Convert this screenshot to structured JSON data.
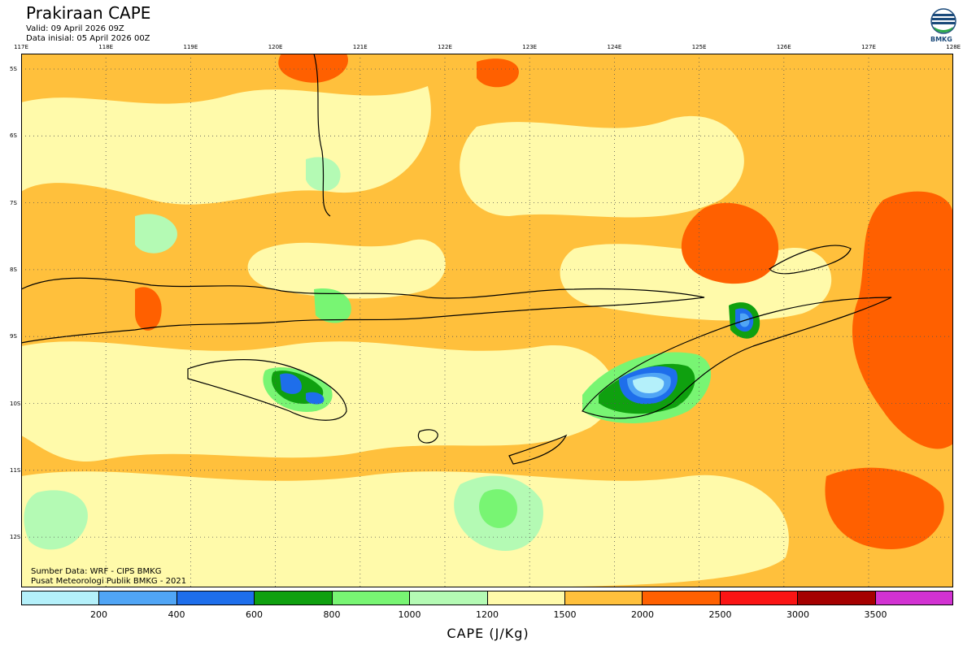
{
  "header": {
    "title": "Prakiraan CAPE",
    "valid": "Valid: 09 April 2026 09Z",
    "init": "Data inisial: 05 April 2026 00Z"
  },
  "logo": {
    "text": "BMKG"
  },
  "axes": {
    "lon_labels": [
      "117E",
      "118E",
      "119E",
      "120E",
      "121E",
      "122E",
      "123E",
      "124E",
      "125E",
      "126E",
      "127E",
      "128E"
    ],
    "lat_labels": [
      "5S",
      "6S",
      "7S",
      "8S",
      "9S",
      "10S",
      "11S",
      "12S"
    ]
  },
  "credits": {
    "line1": "Sumber Data: WRF - CIPS BMKG",
    "line2": "Pusat Meteorologi Publik BMKG - 2021"
  },
  "colorbar": {
    "label": "CAPE (J/Kg)",
    "ticks": [
      "200",
      "400",
      "600",
      "800",
      "1000",
      "1200",
      "1500",
      "2000",
      "2500",
      "3000",
      "3500"
    ],
    "colors": [
      "#b4f0fa",
      "#50a5f5",
      "#1e6eeb",
      "#0fa00f",
      "#78f573",
      "#b4fab4",
      "#fffaaa",
      "#ffc03c",
      "#ff6000",
      "#fa1414",
      "#a50000",
      "#d232d2"
    ]
  },
  "map": {
    "background_color": "#ffc03c",
    "features": [
      "coastlines",
      "lat-lon-grid",
      "CAPE-shading"
    ]
  }
}
